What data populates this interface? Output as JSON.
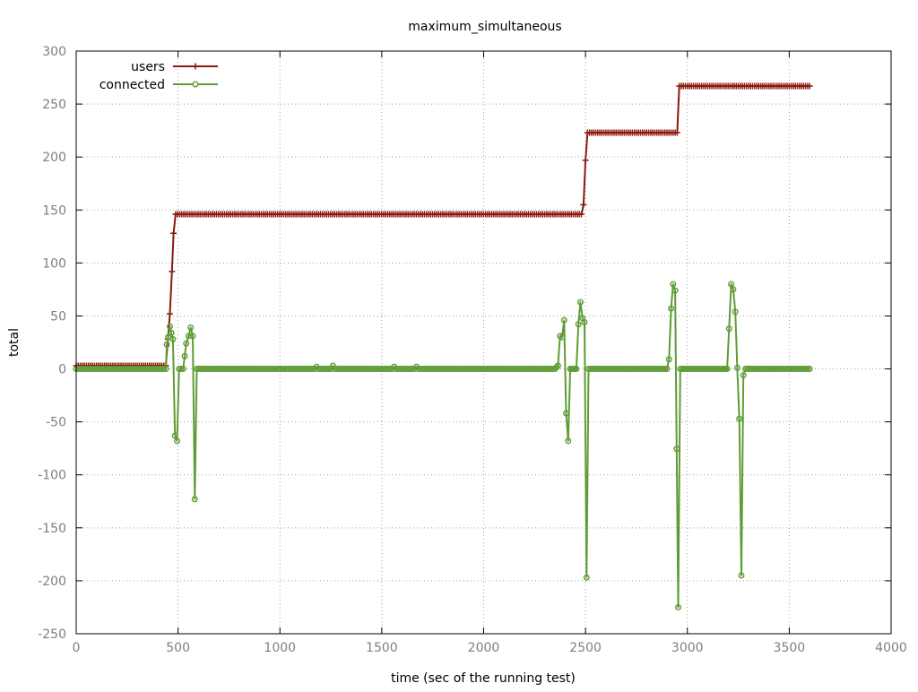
{
  "chart_data": {
    "type": "line",
    "title": "maximum_simultaneous",
    "xlabel": "time (sec of the running test)",
    "ylabel": "total",
    "xlim": [
      0,
      4000
    ],
    "ylim": [
      -250,
      300
    ],
    "x_ticks": [
      0,
      500,
      1000,
      1500,
      2000,
      2500,
      3000,
      3500,
      4000
    ],
    "y_ticks": [
      -250,
      -200,
      -150,
      -100,
      -50,
      0,
      50,
      100,
      150,
      200,
      250,
      300
    ],
    "grid": true,
    "legend_position": "top-left",
    "series": [
      {
        "name": "users",
        "color": "#8b1a0e",
        "marker": "plus",
        "points": [
          [
            0,
            3
          ],
          [
            440,
            3
          ],
          [
            450,
            28
          ],
          [
            460,
            52
          ],
          [
            470,
            92
          ],
          [
            478,
            128
          ],
          [
            488,
            146
          ],
          [
            2480,
            146
          ],
          [
            2490,
            155
          ],
          [
            2500,
            197
          ],
          [
            2510,
            223
          ],
          [
            2950,
            223
          ],
          [
            2960,
            267
          ],
          [
            3600,
            267
          ]
        ]
      },
      {
        "name": "connected",
        "color": "#5e9c36",
        "marker": "circle",
        "points": [
          [
            0,
            0
          ],
          [
            440,
            0
          ],
          [
            445,
            23
          ],
          [
            452,
            30
          ],
          [
            460,
            40
          ],
          [
            467,
            34
          ],
          [
            475,
            28
          ],
          [
            485,
            -63
          ],
          [
            495,
            -68
          ],
          [
            505,
            0
          ],
          [
            515,
            0
          ],
          [
            525,
            0
          ],
          [
            540,
            24
          ],
          [
            552,
            31
          ],
          [
            562,
            39
          ],
          [
            572,
            31
          ],
          [
            582,
            -123
          ],
          [
            592,
            0
          ],
          [
            1170,
            0
          ],
          [
            1180,
            2
          ],
          [
            1190,
            0
          ],
          [
            1250,
            0
          ],
          [
            1260,
            3
          ],
          [
            1270,
            0
          ],
          [
            1550,
            0
          ],
          [
            1560,
            2
          ],
          [
            1570,
            0
          ],
          [
            1660,
            0
          ],
          [
            1670,
            2
          ],
          [
            1680,
            0
          ],
          [
            2350,
            0
          ],
          [
            2365,
            3
          ],
          [
            2375,
            31
          ],
          [
            2385,
            30
          ],
          [
            2395,
            46
          ],
          [
            2405,
            -42
          ],
          [
            2415,
            -68
          ],
          [
            2425,
            0
          ],
          [
            2440,
            0
          ],
          [
            2455,
            0
          ],
          [
            2465,
            42
          ],
          [
            2475,
            63
          ],
          [
            2485,
            48
          ],
          [
            2495,
            44
          ],
          [
            2505,
            -197
          ],
          [
            2515,
            0
          ],
          [
            2900,
            0
          ],
          [
            2910,
            9
          ],
          [
            2920,
            57
          ],
          [
            2930,
            80
          ],
          [
            2940,
            74
          ],
          [
            2955,
            -225
          ],
          [
            2965,
            0
          ],
          [
            3180,
            0
          ],
          [
            3195,
            0
          ],
          [
            3205,
            38
          ],
          [
            3215,
            80
          ],
          [
            3225,
            75
          ],
          [
            3235,
            54
          ],
          [
            3245,
            1
          ],
          [
            3255,
            -47
          ],
          [
            3265,
            -195
          ],
          [
            3275,
            -6
          ],
          [
            3285,
            0
          ],
          [
            3600,
            0
          ]
        ]
      }
    ]
  }
}
